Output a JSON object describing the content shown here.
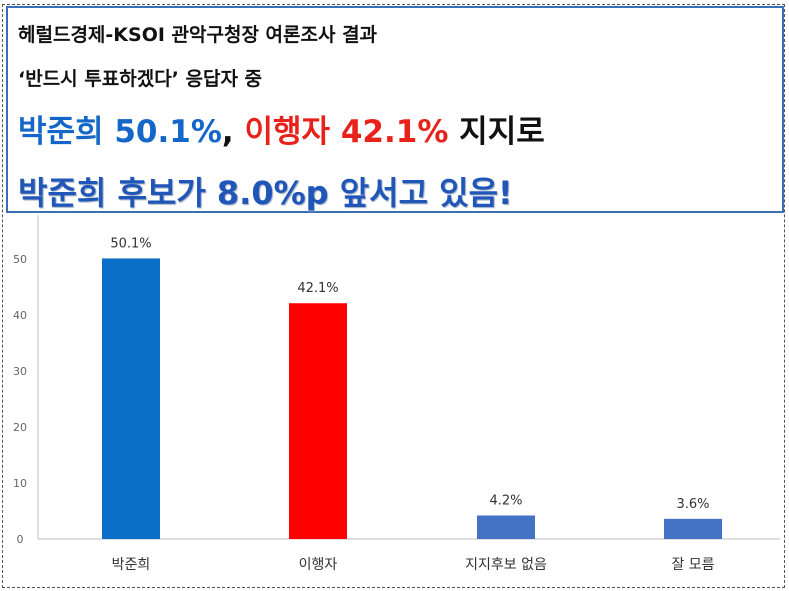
{
  "header": {
    "line1": "헤럴드경제-KSOI 관악구청장 여론조사 결과",
    "line2": "‘반드시 투표하겠다’ 응답자 중",
    "line3": {
      "name1": "박준희 50.1%",
      "sep": ", ",
      "name2": "이행자 42.1%",
      "suffix": " 지지로"
    },
    "line4": "박준희 후보가 8.0%p 앞서고 있음!"
  },
  "colors": {
    "blue_text": "#1466c8",
    "red_text": "#e8221a",
    "headline_blue": "#1f56b8",
    "header_border": "#3a6fb6"
  },
  "chart_data": {
    "type": "bar",
    "categories": [
      "박준희",
      "이행자",
      "지지후보 없음",
      "잘 모름"
    ],
    "values": [
      50.1,
      42.1,
      4.2,
      3.6
    ],
    "data_labels": [
      "50.1%",
      "42.1%",
      "4.2%",
      "3.6%"
    ],
    "bar_colors": [
      "#0a6ec6",
      "#ff0000",
      "#4472c4",
      "#4472c4"
    ],
    "yticks": [
      0,
      10,
      20,
      30,
      40,
      50
    ],
    "ylim": [
      0,
      50
    ],
    "grid": false
  }
}
